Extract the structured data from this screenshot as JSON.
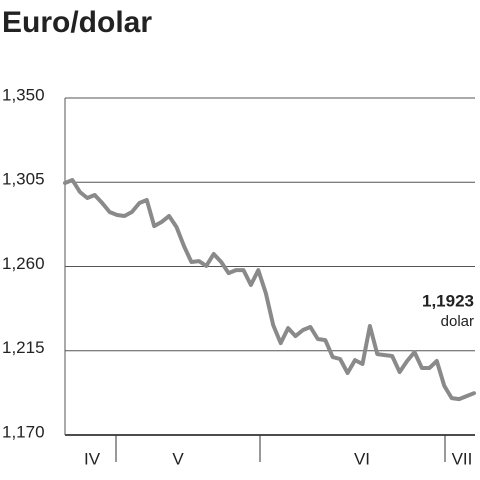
{
  "chart_data": {
    "type": "line",
    "title": "Euro/dolar",
    "months": [
      "IV",
      "V",
      "VI",
      "VII"
    ],
    "color": "#8a8a8a",
    "values": [
      1.3046,
      1.3062,
      1.2998,
      1.2966,
      1.2982,
      1.2939,
      1.2891,
      1.2875,
      1.287,
      1.2891,
      1.2939,
      1.2955,
      1.2816,
      1.2838,
      1.287,
      1.2811,
      1.2709,
      1.2624,
      1.2629,
      1.2603,
      1.2667,
      1.2624,
      1.2565,
      1.2581,
      1.2581,
      1.2501,
      1.2581,
      1.2458,
      1.2287,
      1.2191,
      1.2271,
      1.2228,
      1.2261,
      1.2277,
      1.2213,
      1.2207,
      1.2116,
      1.2106,
      1.2031,
      1.21,
      1.2079,
      1.2282,
      1.2132,
      1.2127,
      1.2122,
      1.2036,
      1.2095,
      1.2143,
      1.2058,
      1.2058,
      1.2095,
      1.1962,
      1.1897,
      1.1892,
      1.1908,
      1.1923
    ],
    "annotation_value": "1,1923",
    "annotation_unit": "dolar",
    "ylim": [
      1.17,
      1.35
    ],
    "yticks": [
      {
        "value": 1.17,
        "label": "1,170"
      },
      {
        "value": 1.215,
        "label": "1,215"
      },
      {
        "value": 1.26,
        "label": "1,260"
      },
      {
        "value": 1.305,
        "label": "1,305"
      },
      {
        "value": 1.35,
        "label": "1,350"
      }
    ],
    "grid": true
  }
}
